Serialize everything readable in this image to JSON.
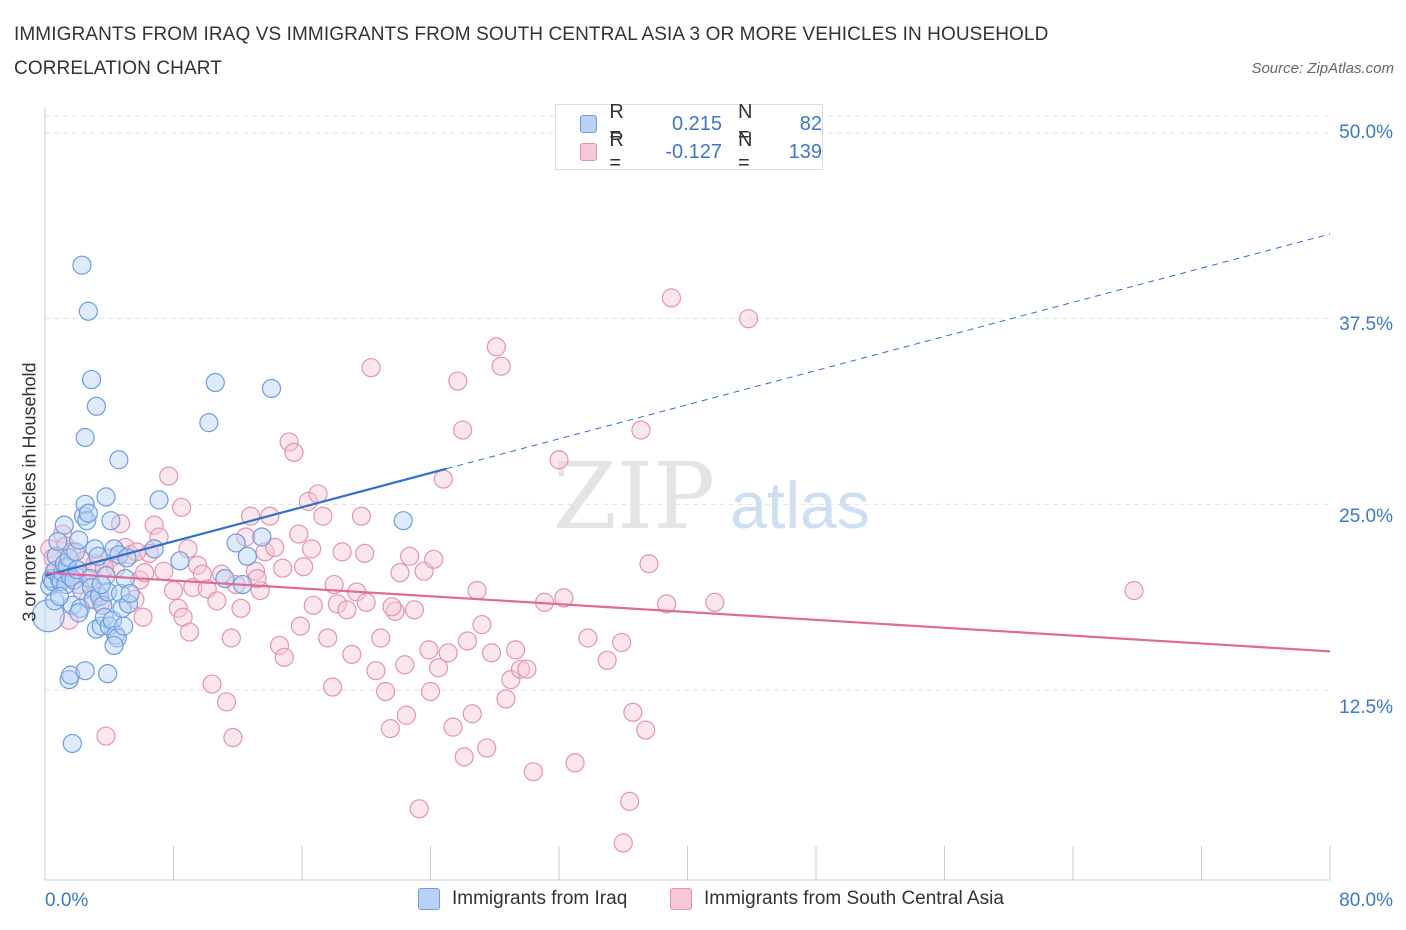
{
  "title": "IMMIGRANTS FROM IRAQ VS IMMIGRANTS FROM SOUTH CENTRAL ASIA 3 OR MORE VEHICLES IN HOUSEHOLD CORRELATION CHART",
  "source": "Source: ZipAtlas.com",
  "watermark": {
    "zip": "ZIP",
    "atlas": "atlas"
  },
  "legend": {
    "iraq": {
      "r_label": "R =",
      "r_value": "0.215",
      "n_label": "N =",
      "n_value": "82"
    },
    "sca": {
      "r_label": "R =",
      "r_value": "-0.127",
      "n_label": "N =",
      "n_value": "139"
    }
  },
  "bottom_legend": {
    "iraq": "Immigrants from Iraq",
    "sca": "Immigrants from South Central Asia"
  },
  "colors": {
    "blue": "#6b9de0",
    "blue_fill": "#b8d3f7",
    "pink": "#e593ae",
    "pink_fill": "#f8c8d6",
    "blue_line": "#2f6fd0",
    "pink_line": "#e0689a",
    "tick_text": "#3a78c9"
  },
  "chart_data": {
    "type": "scatter",
    "title": "IMMIGRANTS FROM IRAQ VS IMMIGRANTS FROM SOUTH CENTRAL ASIA 3 OR MORE VEHICLES IN HOUSEHOLD CORRELATION CHART",
    "xlabel": "",
    "ylabel": "3 or more Vehicles in Household",
    "xlim": [
      0,
      80
    ],
    "ylim": [
      0,
      52
    ],
    "x_tick_labels": [
      "0.0%",
      "80.0%"
    ],
    "y_ticks": [
      12.5,
      25.0,
      37.5,
      50.0
    ],
    "y_tick_labels": [
      "12.5%",
      "25.0%",
      "37.5%",
      "50.0%"
    ],
    "grid": true,
    "legend_position": "top-center",
    "series": [
      {
        "name": "Immigrants from Iraq",
        "color": "#6b9de0",
        "trend": {
          "x0": 0,
          "y0": 20.2,
          "x1": 25,
          "y1": 27.4,
          "extended_to_x": 80,
          "extended_y": 43.2
        },
        "points": [
          [
            0.2,
            17.5
          ],
          [
            0.3,
            19.5
          ],
          [
            0.4,
            20.0
          ],
          [
            0.5,
            19.8
          ],
          [
            0.6,
            20.5
          ],
          [
            0.6,
            18.5
          ],
          [
            0.7,
            21.5
          ],
          [
            0.8,
            22.5
          ],
          [
            0.9,
            20.0
          ],
          [
            1.0,
            19.8
          ],
          [
            1.1,
            20.4
          ],
          [
            1.2,
            21.0
          ],
          [
            1.3,
            19.6
          ],
          [
            1.4,
            20.8
          ],
          [
            1.5,
            21.4
          ],
          [
            1.6,
            20.1
          ],
          [
            1.7,
            18.2
          ],
          [
            1.8,
            19.9
          ],
          [
            1.9,
            21.8
          ],
          [
            2.0,
            20.6
          ],
          [
            2.1,
            22.6
          ],
          [
            2.2,
            18.0
          ],
          [
            2.3,
            19.2
          ],
          [
            2.4,
            24.2
          ],
          [
            2.5,
            25.0
          ],
          [
            2.6,
            23.9
          ],
          [
            2.7,
            24.4
          ],
          [
            2.8,
            20.0
          ],
          [
            2.9,
            19.4
          ],
          [
            3.0,
            18.6
          ],
          [
            3.1,
            22.0
          ],
          [
            3.2,
            16.6
          ],
          [
            3.3,
            21.5
          ],
          [
            3.4,
            18.8
          ],
          [
            3.5,
            16.8
          ],
          [
            3.6,
            18.2
          ],
          [
            3.7,
            17.4
          ],
          [
            3.8,
            20.2
          ],
          [
            3.9,
            19.1
          ],
          [
            4.0,
            16.8
          ],
          [
            4.1,
            23.9
          ],
          [
            4.2,
            17.2
          ],
          [
            4.3,
            22.0
          ],
          [
            4.4,
            16.2
          ],
          [
            4.5,
            16.0
          ],
          [
            4.6,
            21.6
          ],
          [
            4.7,
            19.0
          ],
          [
            4.8,
            18.0
          ],
          [
            4.9,
            16.8
          ],
          [
            5.0,
            20.0
          ],
          [
            5.1,
            21.4
          ],
          [
            5.2,
            18.3
          ],
          [
            1.5,
            13.2
          ],
          [
            1.6,
            13.5
          ],
          [
            2.5,
            13.8
          ],
          [
            3.9,
            13.6
          ],
          [
            1.7,
            8.9
          ],
          [
            2.3,
            41.1
          ],
          [
            2.7,
            38.0
          ],
          [
            2.9,
            33.4
          ],
          [
            3.2,
            31.6
          ],
          [
            2.5,
            29.5
          ],
          [
            4.6,
            28.0
          ],
          [
            3.8,
            25.5
          ],
          [
            5.3,
            19.0
          ],
          [
            6.8,
            22.0
          ],
          [
            7.1,
            25.3
          ],
          [
            8.4,
            21.2
          ],
          [
            10.2,
            30.5
          ],
          [
            10.6,
            33.2
          ],
          [
            12.6,
            21.5
          ],
          [
            12.3,
            19.6
          ],
          [
            11.2,
            20.0
          ],
          [
            11.9,
            22.4
          ],
          [
            14.1,
            32.8
          ],
          [
            13.5,
            22.8
          ],
          [
            22.3,
            23.9
          ],
          [
            1.2,
            23.6
          ],
          [
            2.1,
            17.7
          ],
          [
            3.5,
            19.6
          ],
          [
            0.9,
            18.8
          ],
          [
            4.3,
            15.5
          ]
        ]
      },
      {
        "name": "Immigrants from South Central Asia",
        "color": "#e593ae",
        "trend": {
          "x0": 0,
          "y0": 20.4,
          "x1": 80,
          "y1": 15.1
        },
        "points": [
          [
            0.3,
            22.0
          ],
          [
            0.5,
            21.4
          ],
          [
            0.7,
            20.6
          ],
          [
            0.9,
            19.8
          ],
          [
            1.1,
            23.0
          ],
          [
            1.3,
            22.2
          ],
          [
            1.5,
            17.2
          ],
          [
            1.7,
            21.8
          ],
          [
            1.9,
            20.2
          ],
          [
            2.1,
            19.6
          ],
          [
            2.4,
            21.2
          ],
          [
            2.7,
            18.6
          ],
          [
            2.9,
            20.5
          ],
          [
            3.2,
            19.1
          ],
          [
            3.5,
            18.4
          ],
          [
            3.8,
            9.4
          ],
          [
            4.1,
            21.4
          ],
          [
            4.4,
            20.7
          ],
          [
            4.7,
            23.7
          ],
          [
            5.0,
            22.1
          ],
          [
            5.3,
            21.6
          ],
          [
            5.6,
            18.6
          ],
          [
            5.9,
            19.9
          ],
          [
            6.2,
            20.4
          ],
          [
            6.5,
            21.7
          ],
          [
            6.8,
            23.6
          ],
          [
            7.1,
            22.8
          ],
          [
            7.4,
            20.5
          ],
          [
            7.7,
            26.9
          ],
          [
            8.0,
            19.2
          ],
          [
            8.3,
            18.0
          ],
          [
            8.6,
            17.4
          ],
          [
            8.9,
            22.0
          ],
          [
            9.2,
            19.4
          ],
          [
            9.5,
            20.9
          ],
          [
            9.8,
            20.3
          ],
          [
            10.1,
            19.3
          ],
          [
            10.4,
            12.9
          ],
          [
            10.7,
            18.5
          ],
          [
            11.0,
            20.3
          ],
          [
            11.3,
            11.7
          ],
          [
            11.6,
            16.0
          ],
          [
            11.9,
            19.6
          ],
          [
            12.2,
            18.0
          ],
          [
            12.5,
            22.8
          ],
          [
            12.8,
            24.2
          ],
          [
            13.1,
            20.5
          ],
          [
            13.4,
            19.2
          ],
          [
            13.7,
            21.8
          ],
          [
            14.0,
            24.2
          ],
          [
            14.3,
            22.1
          ],
          [
            14.6,
            15.5
          ],
          [
            14.9,
            14.7
          ],
          [
            15.2,
            29.2
          ],
          [
            15.5,
            28.5
          ],
          [
            15.8,
            23.0
          ],
          [
            16.1,
            20.8
          ],
          [
            16.4,
            25.2
          ],
          [
            16.7,
            18.2
          ],
          [
            17.0,
            25.7
          ],
          [
            17.3,
            24.2
          ],
          [
            17.6,
            16.0
          ],
          [
            17.9,
            12.7
          ],
          [
            18.2,
            18.3
          ],
          [
            18.5,
            21.8
          ],
          [
            18.8,
            17.9
          ],
          [
            19.1,
            14.9
          ],
          [
            19.4,
            19.1
          ],
          [
            19.7,
            24.2
          ],
          [
            20.0,
            18.4
          ],
          [
            20.3,
            34.2
          ],
          [
            20.6,
            13.8
          ],
          [
            20.9,
            16.0
          ],
          [
            21.2,
            12.4
          ],
          [
            21.5,
            9.9
          ],
          [
            21.8,
            17.8
          ],
          [
            22.1,
            20.4
          ],
          [
            22.4,
            14.2
          ],
          [
            22.7,
            21.5
          ],
          [
            23.0,
            17.9
          ],
          [
            23.3,
            4.5
          ],
          [
            23.6,
            20.5
          ],
          [
            23.9,
            15.2
          ],
          [
            24.2,
            21.3
          ],
          [
            24.5,
            14.0
          ],
          [
            24.8,
            26.7
          ],
          [
            25.1,
            15.0
          ],
          [
            25.4,
            10.0
          ],
          [
            25.7,
            33.3
          ],
          [
            26.0,
            30.0
          ],
          [
            26.3,
            15.8
          ],
          [
            26.6,
            10.9
          ],
          [
            26.9,
            19.2
          ],
          [
            27.2,
            16.9
          ],
          [
            27.5,
            8.6
          ],
          [
            27.8,
            15.0
          ],
          [
            28.1,
            35.6
          ],
          [
            28.4,
            34.3
          ],
          [
            28.7,
            11.9
          ],
          [
            29.0,
            13.2
          ],
          [
            29.3,
            15.2
          ],
          [
            29.6,
            13.9
          ],
          [
            30.4,
            7.0
          ],
          [
            31.1,
            18.4
          ],
          [
            32.0,
            28.0
          ],
          [
            32.3,
            18.7
          ],
          [
            33.0,
            7.6
          ],
          [
            35.0,
            14.5
          ],
          [
            36.0,
            2.2
          ],
          [
            36.4,
            5.0
          ],
          [
            36.6,
            11.0
          ],
          [
            37.1,
            30.0
          ],
          [
            37.4,
            9.8
          ],
          [
            37.6,
            21.0
          ],
          [
            38.7,
            18.3
          ],
          [
            39.0,
            38.9
          ],
          [
            41.7,
            18.4
          ],
          [
            43.8,
            37.5
          ],
          [
            67.8,
            19.2
          ],
          [
            3.1,
            21.0
          ],
          [
            5.7,
            21.8
          ],
          [
            6.1,
            17.4
          ],
          [
            9.0,
            16.4
          ],
          [
            13.2,
            20.0
          ],
          [
            15.9,
            16.8
          ],
          [
            18.0,
            19.6
          ],
          [
            19.9,
            21.7
          ],
          [
            21.6,
            18.1
          ],
          [
            22.5,
            10.8
          ],
          [
            24.0,
            12.4
          ],
          [
            26.1,
            8.0
          ],
          [
            30.0,
            13.9
          ],
          [
            33.8,
            16.0
          ],
          [
            35.9,
            15.7
          ],
          [
            11.7,
            9.3
          ],
          [
            16.6,
            22.0
          ],
          [
            8.5,
            24.8
          ],
          [
            14.8,
            20.7
          ],
          [
            3.7,
            20.7
          ]
        ]
      }
    ]
  }
}
